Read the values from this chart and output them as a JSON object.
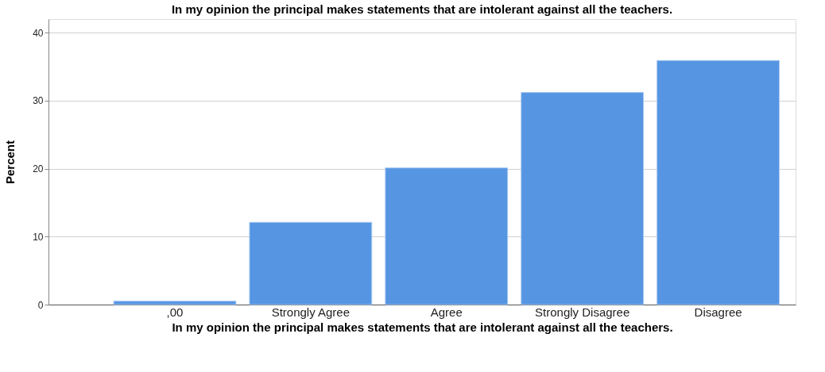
{
  "chart_data": {
    "type": "bar",
    "title": "In my opinion the principal makes statements that are intolerant against all the teachers.",
    "xlabel": "In my opinion the principal makes statements that are intolerant against all the teachers.",
    "ylabel": "Percent",
    "categories": [
      ",00",
      "Strongly Agree",
      "Agree",
      "Strongly Disagree",
      "Disagree"
    ],
    "values": [
      0.5,
      12.1,
      20.1,
      31.2,
      35.9
    ],
    "color": "#5595e2",
    "ylim": [
      0,
      42
    ],
    "yticks": [
      0,
      10,
      20,
      30,
      40
    ],
    "grid": "y"
  }
}
